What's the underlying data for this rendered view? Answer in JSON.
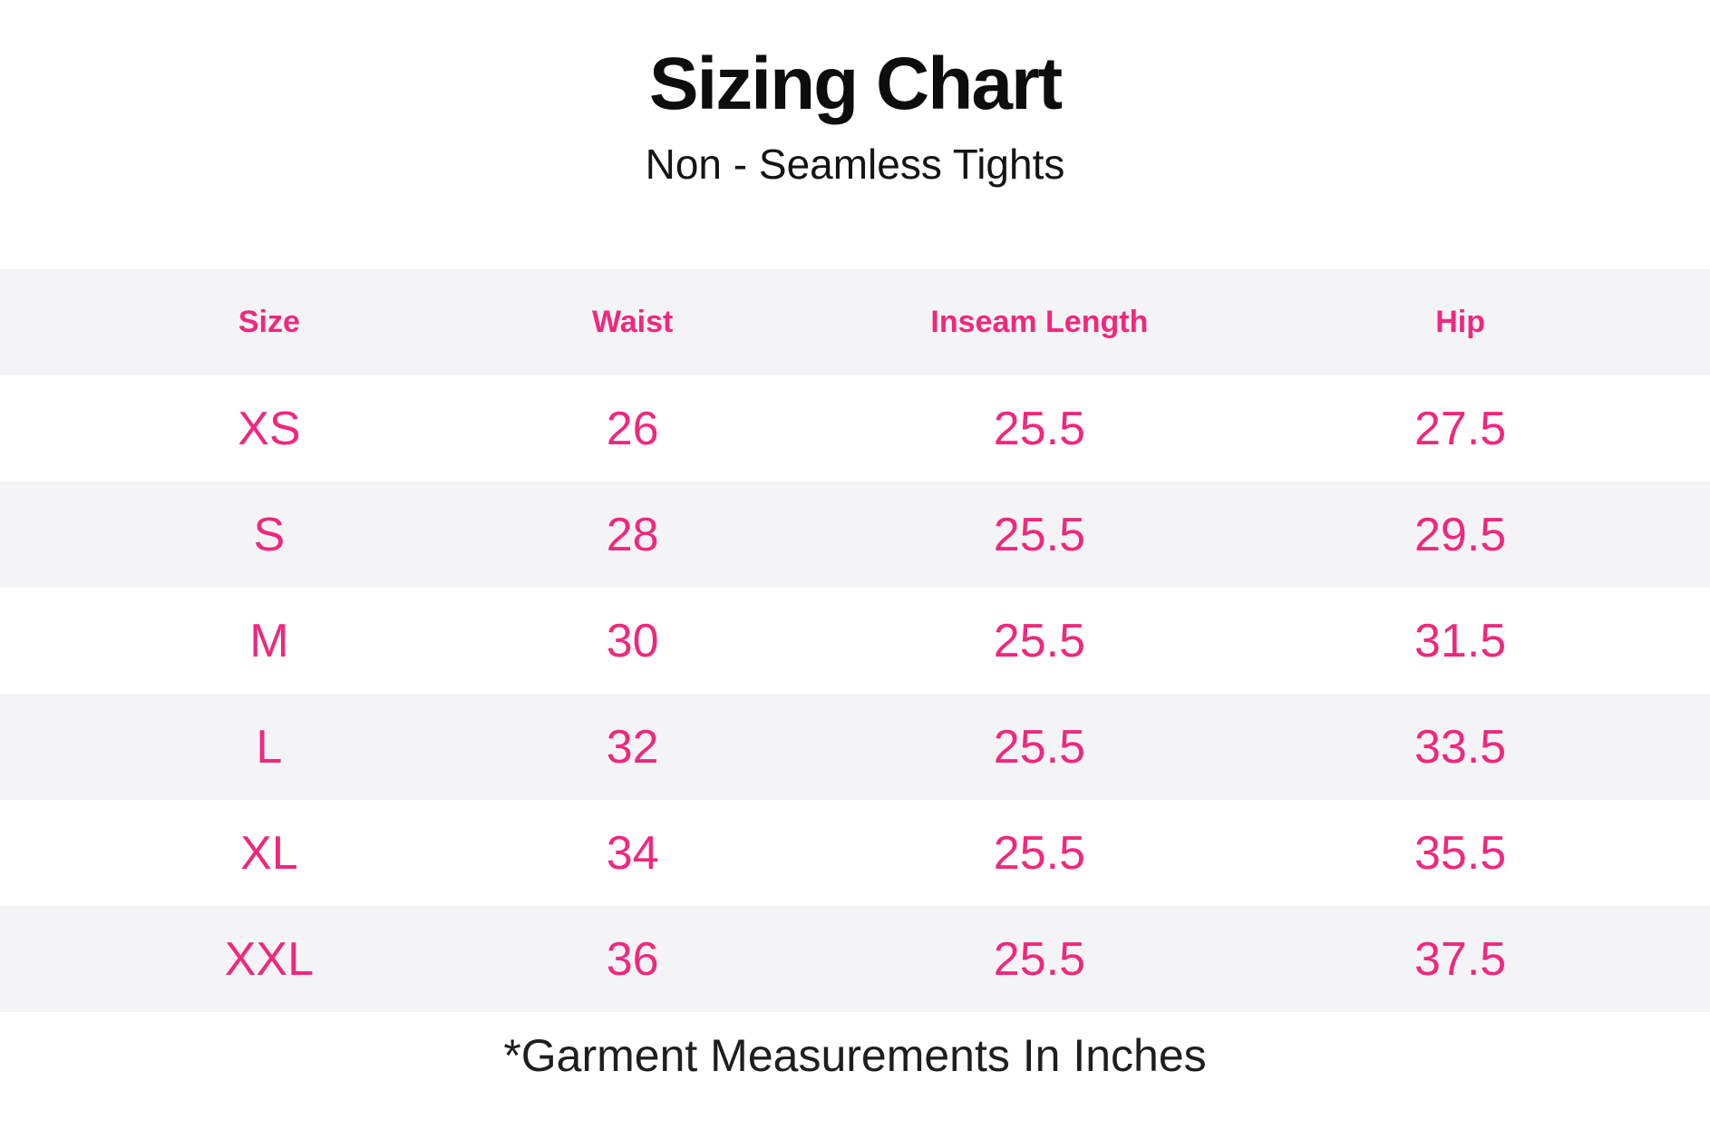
{
  "title": "Sizing Chart",
  "subtitle": "Non - Seamless Tights",
  "footnote": "*Garment Measurements In Inches",
  "colors": {
    "accent_pink": "#f0287c",
    "stripe_gray": "#f4f4f6",
    "text_dark": "#0d0d0d",
    "background": "#ffffff"
  },
  "chart_data": {
    "type": "table",
    "title": "Sizing Chart",
    "subtitle": "Non - Seamless Tights",
    "columns": [
      "Size",
      "Waist",
      "Inseam Length",
      "Hip"
    ],
    "rows": [
      [
        "XS",
        "26",
        "25.5",
        "27.5"
      ],
      [
        "S",
        "28",
        "25.5",
        "29.5"
      ],
      [
        "M",
        "30",
        "25.5",
        "31.5"
      ],
      [
        "L",
        "32",
        "25.5",
        "33.5"
      ],
      [
        "XL",
        "34",
        "25.5",
        "35.5"
      ],
      [
        "XXL",
        "36",
        "25.5",
        "37.5"
      ]
    ],
    "units_note": "*Garment Measurements In Inches",
    "layout": {
      "striped_rows": true,
      "header_background": "#f4f4f6",
      "values_in_inches": true
    }
  }
}
